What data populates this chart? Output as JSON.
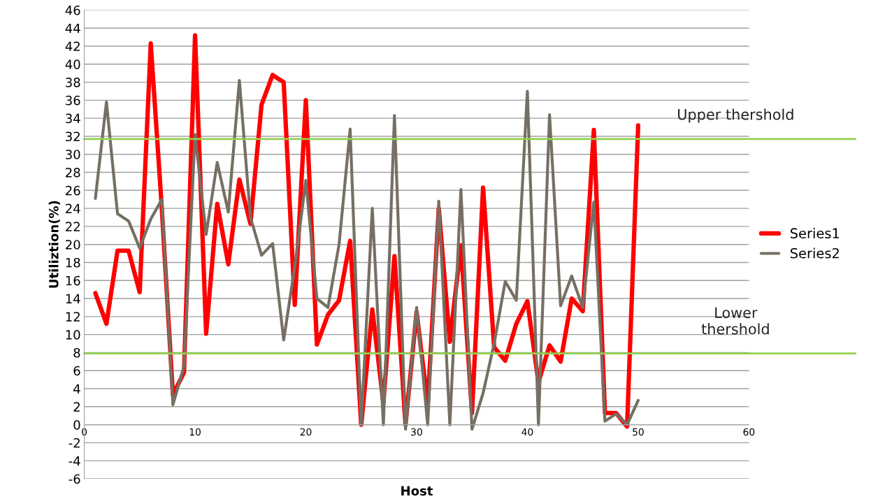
{
  "chart_data": {
    "type": "line",
    "xlabel": "Host",
    "ylabel": "Utiliztion(%)",
    "x": [
      1,
      2,
      3,
      4,
      5,
      6,
      7,
      8,
      9,
      10,
      11,
      12,
      13,
      14,
      15,
      16,
      17,
      18,
      19,
      20,
      21,
      22,
      23,
      24,
      25,
      26,
      27,
      28,
      29,
      30,
      31,
      32,
      33,
      34,
      35,
      36,
      37,
      38,
      39,
      40,
      41,
      42,
      43,
      44,
      45,
      46,
      47,
      48,
      49,
      50
    ],
    "series": [
      {
        "name": "Series1",
        "color": "#ff0000",
        "values": [
          14.6,
          11.2,
          19.3,
          19.3,
          14.7,
          42.3,
          24,
          3.3,
          5.8,
          43.2,
          10.1,
          24.5,
          17.8,
          27.2,
          22.3,
          35.5,
          38.8,
          38,
          13.3,
          36,
          8.9,
          12.2,
          13.8,
          20.4,
          0,
          12.8,
          2.4,
          18.7,
          0,
          12.5,
          2.3,
          24,
          9.2,
          19.9,
          1.3,
          26.3,
          8.6,
          7.1,
          11.2,
          13.7,
          4.7,
          8.8,
          7,
          14,
          12.6,
          32.7,
          1.3,
          1.3,
          -0.2,
          33.2
        ]
      },
      {
        "name": "Series2",
        "color": "#766f63",
        "values": [
          25.1,
          35.8,
          23.4,
          22.6,
          19.6,
          22.8,
          25,
          2.2,
          6.5,
          32.2,
          21.1,
          29.1,
          23.6,
          38.2,
          23,
          18.8,
          20.1,
          9.4,
          17.5,
          27.1,
          14,
          13,
          20,
          32.8,
          0,
          24,
          0,
          34.3,
          -0.5,
          13,
          0,
          24.8,
          0,
          26.1,
          -0.5,
          3.5,
          9,
          15.9,
          13.8,
          37,
          0,
          34.4,
          13.2,
          16.5,
          13,
          24.7,
          0.4,
          1.2,
          0,
          2.7
        ]
      }
    ],
    "xlim": [
      0,
      60
    ],
    "xticks": [
      0,
      10,
      20,
      30,
      40,
      50,
      60
    ],
    "ylim": [
      -6,
      46
    ],
    "yticks": [
      -6,
      -4,
      -2,
      0,
      2,
      4,
      6,
      8,
      10,
      12,
      14,
      16,
      18,
      20,
      22,
      24,
      26,
      28,
      30,
      32,
      34,
      36,
      38,
      40,
      42,
      44,
      46
    ],
    "ref_lines": [
      {
        "axis": "y",
        "value": 31.7,
        "label": "Upper thershold",
        "color": "#92d050"
      },
      {
        "axis": "y",
        "value": 7.9,
        "label": "Lower\nthershold",
        "color": "#92d050"
      }
    ],
    "grid": "y",
    "legend": "right",
    "marker": "none",
    "line_style": "solid"
  }
}
